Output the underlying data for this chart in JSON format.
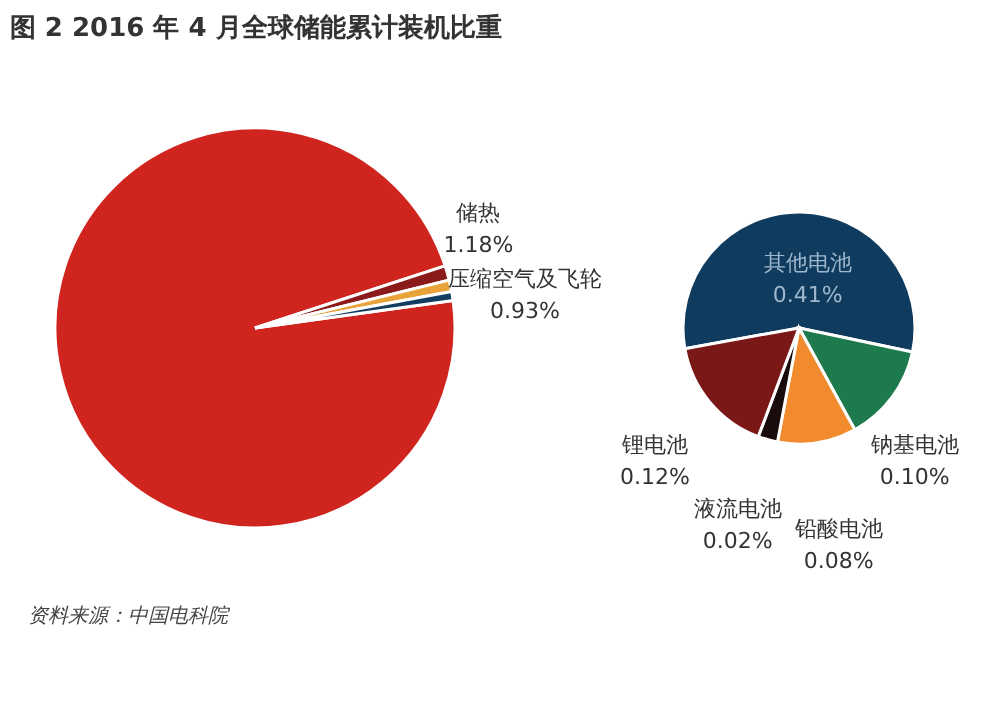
{
  "chart_data": [
    {
      "type": "pie",
      "title": "图 2 2016 年 4 月全球储能累计装机比重",
      "categories": [
        null,
        "储热",
        "压缩空气及飞轮",
        null
      ],
      "values": [
        97.16,
        1.18,
        0.93,
        0.73
      ],
      "value_labels": [
        null,
        "1.18%",
        "0.93%",
        null
      ],
      "colors": [
        "#d0241f",
        "#8b1a1a",
        "#e8a33a",
        "#123d63"
      ]
    },
    {
      "type": "pie",
      "categories": [
        "其他电池",
        "钠基电池",
        "铅酸电池",
        "液流电池",
        "锂电池"
      ],
      "values": [
        0.41,
        0.1,
        0.08,
        0.02,
        0.12
      ],
      "value_labels": [
        "0.41%",
        "0.10%",
        "0.08%",
        "0.02%",
        "0.12%"
      ],
      "colors": [
        "#0f3b5f",
        "#1d7a4c",
        "#f28a2e",
        "#1a0c0c",
        "#7a1717"
      ],
      "annotations": [
        "资料来源：中国电科院"
      ]
    }
  ]
}
